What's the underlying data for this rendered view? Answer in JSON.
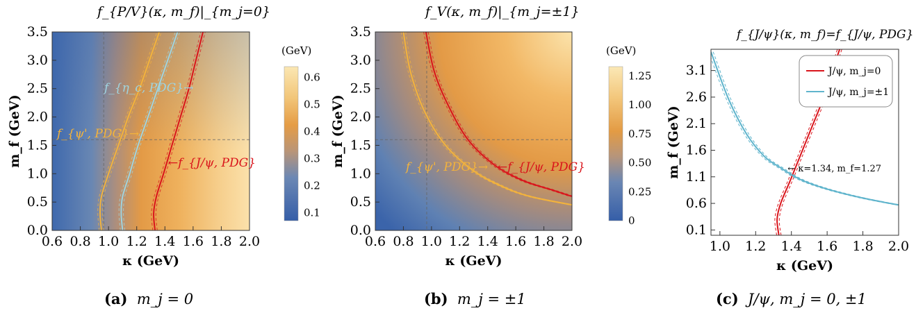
{
  "panels": [
    {
      "id": "a",
      "title": "f_{P/V}(κ, m_f)|_{m_j=0}",
      "caption_label": "(a)",
      "caption_text": "m_j = 0",
      "xlabel": "κ (GeV)",
      "ylabel": "m_f (GeV)",
      "colorbar_unit": "(GeV)"
    },
    {
      "id": "b",
      "title": "f_V(κ, m_f)|_{m_j=±1}",
      "caption_label": "(b)",
      "caption_text": "m_j = ±1",
      "xlabel": "κ (GeV)",
      "ylabel": "m_f (GeV)",
      "colorbar_unit": "(GeV)"
    },
    {
      "id": "c",
      "title": "f_{J/ψ}(κ, m_f)=f_{J/ψ, PDG}",
      "caption_label": "(c)",
      "caption_text": "J/ψ, m_j = 0, ±1",
      "xlabel": "κ (GeV)",
      "ylabel": "m_f (GeV)"
    }
  ],
  "chart_data": [
    {
      "type": "heatmap",
      "panel": "a",
      "xlim": [
        0.6,
        2.0
      ],
      "ylim": [
        0.0,
        3.5
      ],
      "x_ticks": [
        "0.6",
        "0.8",
        "1.0",
        "1.2",
        "1.4",
        "1.6",
        "1.8",
        "2.0"
      ],
      "y_ticks": [
        "0.0",
        "0.5",
        "1.0",
        "1.5",
        "2.0",
        "2.5",
        "3.0",
        "3.5"
      ],
      "colorbar": {
        "range": [
          0.07,
          0.64
        ],
        "ticks": [
          "0.1",
          "0.2",
          "0.3",
          "0.4",
          "0.5",
          "0.6"
        ]
      },
      "reference_lines": {
        "kappa": 0.966,
        "m_f": 1.6
      },
      "contours": [
        {
          "label": "f_{η_c, PDG}→",
          "color": "#9fd4e0",
          "points": [
            [
              1.1,
              0.0
            ],
            [
              1.09,
              0.3
            ],
            [
              1.1,
              0.6
            ],
            [
              1.15,
              1.0
            ],
            [
              1.21,
              1.5
            ],
            [
              1.28,
              2.0
            ],
            [
              1.35,
              2.5
            ],
            [
              1.42,
              3.0
            ],
            [
              1.49,
              3.5
            ]
          ]
        },
        {
          "label": "f_{ψ', PDG}→",
          "color": "#f3b33c",
          "points": [
            [
              0.95,
              0.0
            ],
            [
              0.94,
              0.3
            ],
            [
              0.95,
              0.6
            ],
            [
              1.0,
              1.0
            ],
            [
              1.07,
              1.5
            ],
            [
              1.14,
              2.0
            ],
            [
              1.22,
              2.5
            ],
            [
              1.29,
              3.0
            ],
            [
              1.36,
              3.5
            ]
          ]
        },
        {
          "label": "←f_{J/ψ, PDG}",
          "color": "#d9141b",
          "points": [
            [
              1.33,
              0.0
            ],
            [
              1.32,
              0.3
            ],
            [
              1.34,
              0.6
            ],
            [
              1.39,
              1.0
            ],
            [
              1.45,
              1.5
            ],
            [
              1.51,
              2.0
            ],
            [
              1.57,
              2.5
            ],
            [
              1.62,
              3.0
            ],
            [
              1.67,
              3.5
            ]
          ]
        }
      ]
    },
    {
      "type": "heatmap",
      "panel": "b",
      "xlim": [
        0.6,
        2.0
      ],
      "ylim": [
        0.0,
        3.5
      ],
      "x_ticks": [
        "0.6",
        "0.8",
        "1.0",
        "1.2",
        "1.4",
        "1.6",
        "1.8",
        "2.0"
      ],
      "y_ticks": [
        "0.0",
        "0.5",
        "1.0",
        "1.5",
        "2.0",
        "2.5",
        "3.0",
        "3.5"
      ],
      "colorbar": {
        "range": [
          0.0,
          1.33
        ],
        "ticks": [
          "0",
          "0.25",
          "0.50",
          "0.75",
          "1.00",
          "1.25"
        ]
      },
      "reference_lines": {
        "kappa": 0.966,
        "m_f": 1.6
      },
      "contours": [
        {
          "label": "f_{ψ', PDG}→",
          "color": "#f3b33c",
          "points": [
            [
              0.8,
              3.5
            ],
            [
              0.85,
              2.8
            ],
            [
              0.95,
              2.1
            ],
            [
              1.1,
              1.5
            ],
            [
              1.3,
              1.05
            ],
            [
              1.5,
              0.78
            ],
            [
              1.7,
              0.6
            ],
            [
              2.0,
              0.45
            ]
          ]
        },
        {
          "label": "←f_{J/ψ, PDG}",
          "color": "#d9141b",
          "points": [
            [
              0.96,
              3.5
            ],
            [
              1.02,
              2.8
            ],
            [
              1.12,
              2.2
            ],
            [
              1.26,
              1.6
            ],
            [
              1.45,
              1.15
            ],
            [
              1.65,
              0.88
            ],
            [
              1.85,
              0.72
            ],
            [
              2.0,
              0.6
            ]
          ]
        }
      ]
    },
    {
      "type": "line",
      "panel": "c",
      "xlim": [
        0.95,
        2.0
      ],
      "ylim": [
        0.0,
        3.5
      ],
      "x_ticks": [
        "1.0",
        "1.2",
        "1.4",
        "1.6",
        "1.8",
        "2.0"
      ],
      "y_ticks": [
        "0.1",
        "0.6",
        "1.1",
        "1.6",
        "2.1",
        "2.6",
        "3.1"
      ],
      "legend": "top-right",
      "annotation": {
        "text": "← κ=1.34, m_f=1.27",
        "x": 1.34,
        "y": 1.27
      },
      "series": [
        {
          "name": "J/ψ, m_j=0",
          "color": "#d9141b",
          "points": [
            [
              1.33,
              0.0
            ],
            [
              1.32,
              0.3
            ],
            [
              1.34,
              0.6
            ],
            [
              1.39,
              1.0
            ],
            [
              1.45,
              1.5
            ],
            [
              1.51,
              2.0
            ],
            [
              1.57,
              2.5
            ],
            [
              1.62,
              3.0
            ],
            [
              1.67,
              3.5
            ]
          ]
        },
        {
          "name": "J/ψ, m_j=±1",
          "color": "#5fb4cc",
          "points": [
            [
              0.95,
              3.45
            ],
            [
              1.05,
              2.55
            ],
            [
              1.15,
              1.9
            ],
            [
              1.25,
              1.48
            ],
            [
              1.34,
              1.27
            ],
            [
              1.45,
              1.05
            ],
            [
              1.6,
              0.87
            ],
            [
              1.8,
              0.7
            ],
            [
              2.0,
              0.57
            ]
          ]
        }
      ]
    }
  ]
}
